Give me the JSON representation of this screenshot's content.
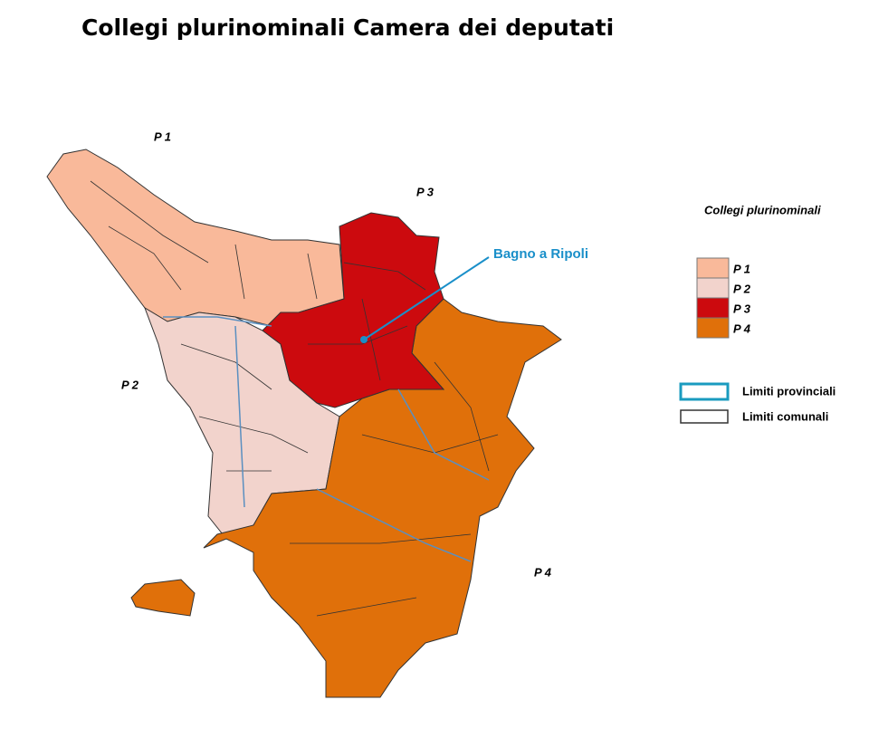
{
  "title": "Collegi plurinominali Camera dei deputati",
  "map": {
    "regions": [
      {
        "label": "P 1",
        "color": "#f9b99a"
      },
      {
        "label": "P 2",
        "color": "#f2d3cc"
      },
      {
        "label": "P 3",
        "color": "#cc0a0e"
      },
      {
        "label": "P 4",
        "color": "#e0700a"
      }
    ],
    "annotation": "Bagno a Ripoli"
  },
  "legend": {
    "title": "Collegi plurinominali",
    "boundaries": [
      "Limiti provinciali",
      "Limiti comunali"
    ]
  }
}
